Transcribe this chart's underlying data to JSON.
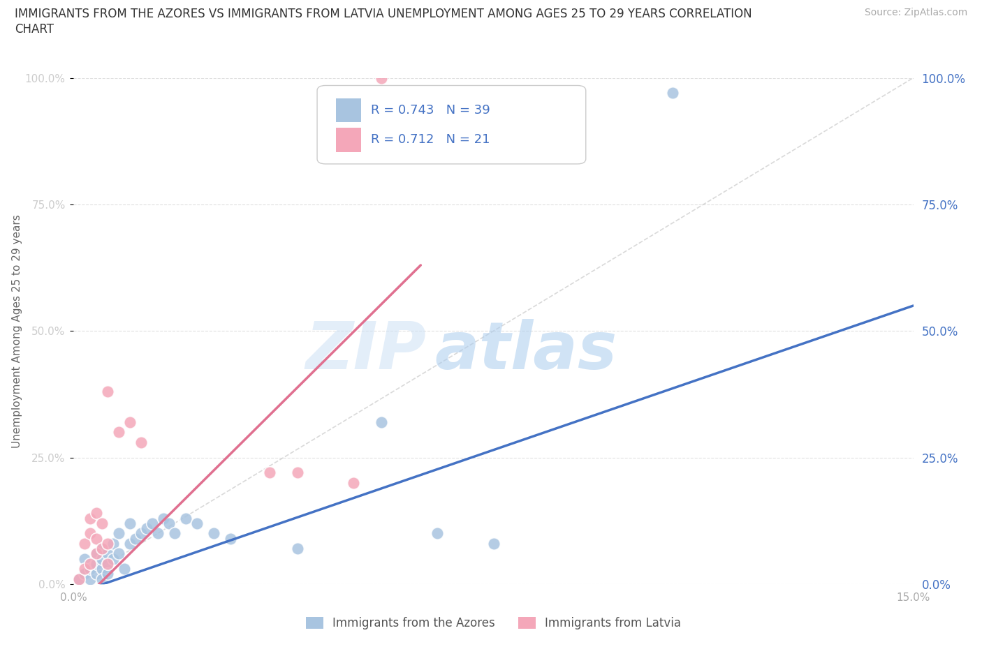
{
  "title_line1": "IMMIGRANTS FROM THE AZORES VS IMMIGRANTS FROM LATVIA UNEMPLOYMENT AMONG AGES 25 TO 29 YEARS CORRELATION",
  "title_line2": "CHART",
  "source": "Source: ZipAtlas.com",
  "ylabel": "Unemployment Among Ages 25 to 29 years",
  "xlim": [
    0.0,
    0.15
  ],
  "ylim": [
    0.0,
    1.0
  ],
  "yticks": [
    0.0,
    0.25,
    0.5,
    0.75,
    1.0
  ],
  "ytick_labels": [
    "0.0%",
    "25.0%",
    "50.0%",
    "75.0%",
    "100.0%"
  ],
  "xticks": [
    0.0,
    0.05,
    0.1,
    0.15
  ],
  "xtick_labels": [
    "0.0%",
    "",
    "",
    "15.0%"
  ],
  "azores_color": "#a8c4e0",
  "latvia_color": "#f4a7b9",
  "azores_line_color": "#4472c4",
  "latvia_line_color": "#e07090",
  "diagonal_color": "#d0d0d0",
  "R_azores": 0.743,
  "N_azores": 39,
  "R_latvia": 0.712,
  "N_latvia": 21,
  "legend_text_color": "#4472c4",
  "azores_scatter": [
    [
      0.001,
      0.01
    ],
    [
      0.002,
      0.02
    ],
    [
      0.002,
      0.05
    ],
    [
      0.003,
      0.01
    ],
    [
      0.003,
      0.03
    ],
    [
      0.004,
      0.02
    ],
    [
      0.004,
      0.06
    ],
    [
      0.004,
      0.04
    ],
    [
      0.005,
      0.03
    ],
    [
      0.005,
      0.05
    ],
    [
      0.005,
      0.07
    ],
    [
      0.005,
      0.01
    ],
    [
      0.006,
      0.04
    ],
    [
      0.006,
      0.06
    ],
    [
      0.006,
      0.02
    ],
    [
      0.007,
      0.05
    ],
    [
      0.007,
      0.08
    ],
    [
      0.008,
      0.06
    ],
    [
      0.008,
      0.1
    ],
    [
      0.009,
      0.03
    ],
    [
      0.01,
      0.08
    ],
    [
      0.01,
      0.12
    ],
    [
      0.011,
      0.09
    ],
    [
      0.012,
      0.1
    ],
    [
      0.013,
      0.11
    ],
    [
      0.014,
      0.12
    ],
    [
      0.015,
      0.1
    ],
    [
      0.016,
      0.13
    ],
    [
      0.017,
      0.12
    ],
    [
      0.018,
      0.1
    ],
    [
      0.02,
      0.13
    ],
    [
      0.022,
      0.12
    ],
    [
      0.025,
      0.1
    ],
    [
      0.028,
      0.09
    ],
    [
      0.04,
      0.07
    ],
    [
      0.055,
      0.32
    ],
    [
      0.065,
      0.1
    ],
    [
      0.075,
      0.08
    ],
    [
      0.107,
      0.97
    ]
  ],
  "latvia_scatter": [
    [
      0.001,
      0.01
    ],
    [
      0.002,
      0.03
    ],
    [
      0.002,
      0.08
    ],
    [
      0.003,
      0.04
    ],
    [
      0.003,
      0.1
    ],
    [
      0.003,
      0.13
    ],
    [
      0.004,
      0.06
    ],
    [
      0.004,
      0.09
    ],
    [
      0.004,
      0.14
    ],
    [
      0.005,
      0.07
    ],
    [
      0.005,
      0.12
    ],
    [
      0.006,
      0.04
    ],
    [
      0.006,
      0.08
    ],
    [
      0.006,
      0.38
    ],
    [
      0.008,
      0.3
    ],
    [
      0.01,
      0.32
    ],
    [
      0.012,
      0.28
    ],
    [
      0.035,
      0.22
    ],
    [
      0.04,
      0.22
    ],
    [
      0.05,
      0.2
    ],
    [
      0.055,
      1.0
    ]
  ],
  "azores_trend": [
    0.0,
    0.15,
    -0.02,
    0.55
  ],
  "latvia_trend": [
    0.0,
    0.062,
    -0.05,
    0.63
  ],
  "bottom_legend": [
    "Immigrants from the Azores",
    "Immigrants from Latvia"
  ]
}
